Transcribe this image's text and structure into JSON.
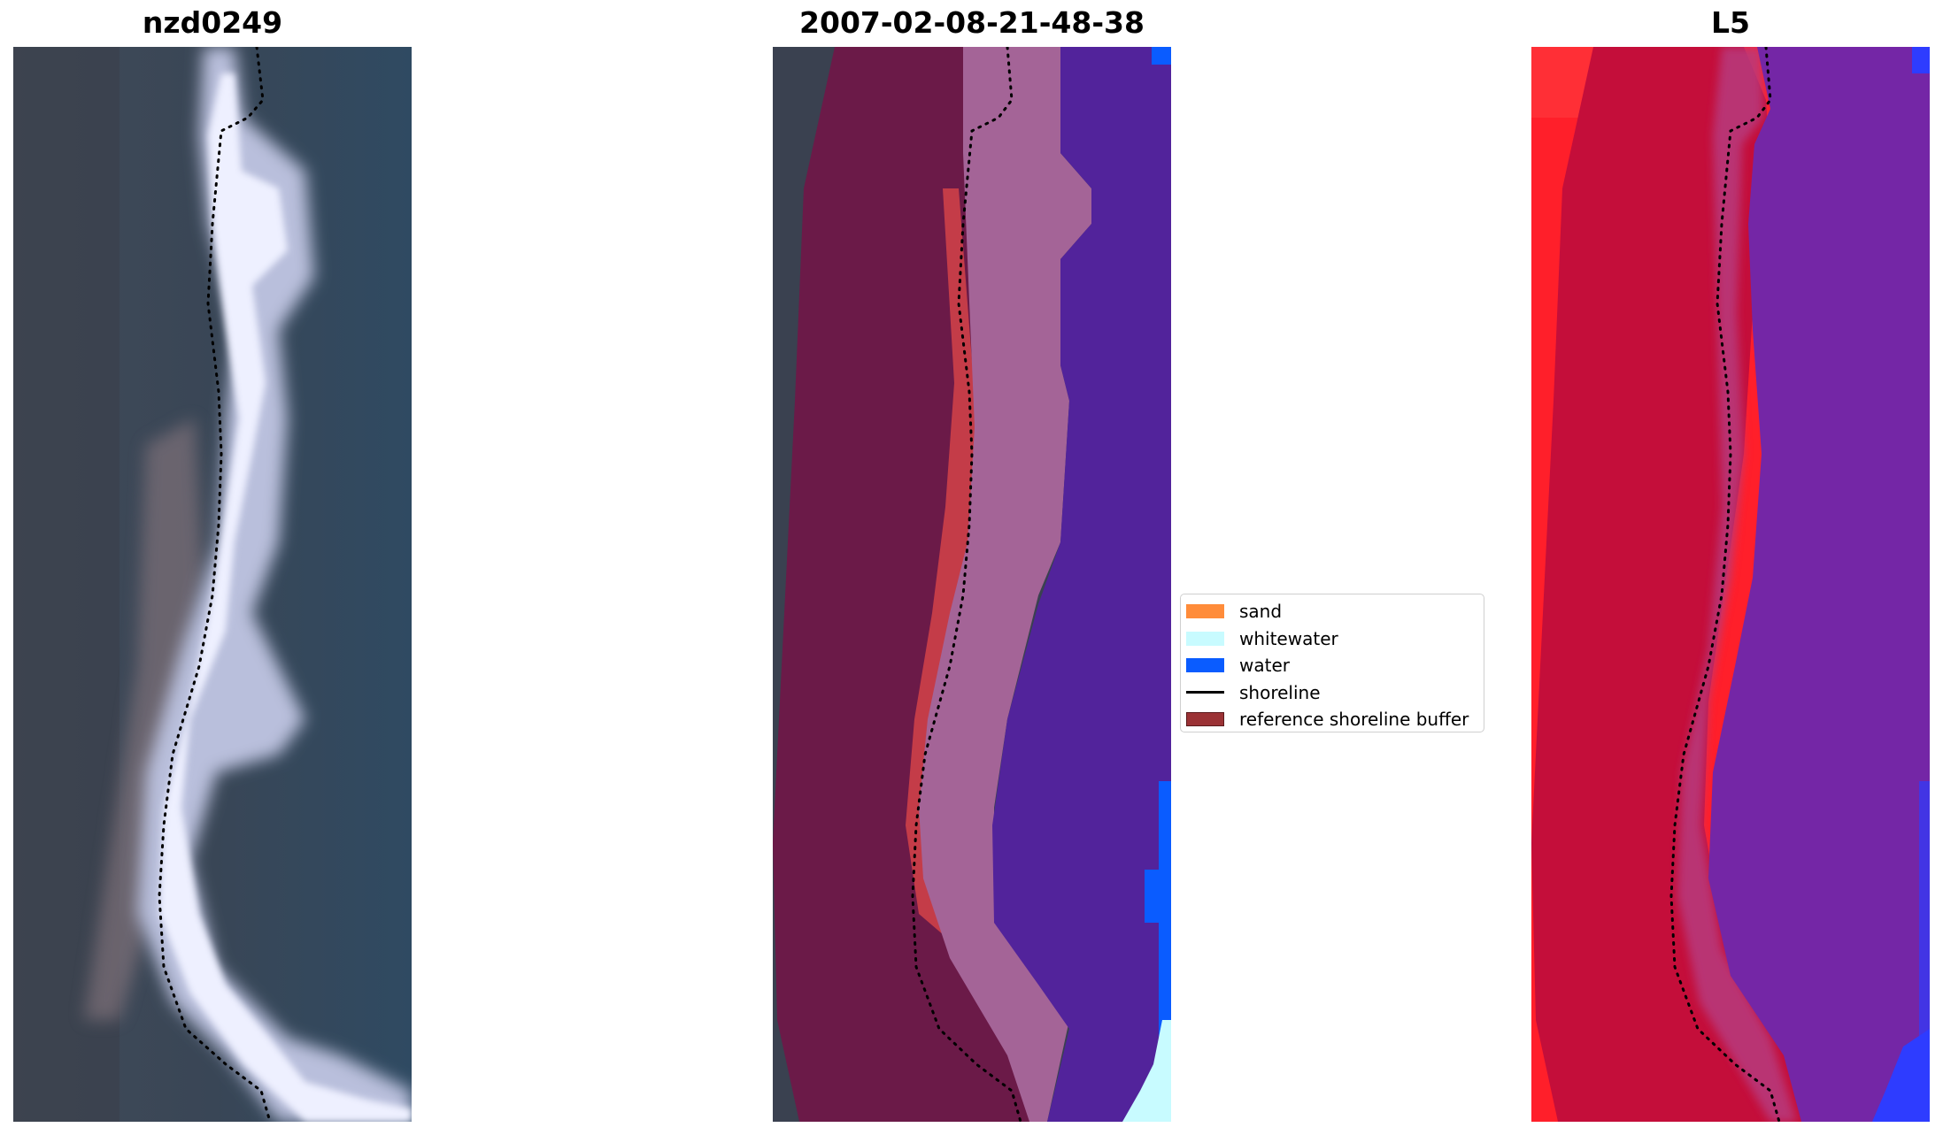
{
  "titles": {
    "left": "nzd0249",
    "center": "2007-02-08-21-48-38",
    "right": "L5"
  },
  "legend": [
    {
      "label": "sand",
      "kind": "patch",
      "color": "#ff8c3a"
    },
    {
      "label": "whitewater",
      "kind": "patch",
      "color": "#c8fbff"
    },
    {
      "label": "water",
      "kind": "patch",
      "color": "#0a5cff"
    },
    {
      "label": "shoreline",
      "kind": "line",
      "color": "#000000"
    },
    {
      "label": "reference shoreline buffer",
      "kind": "patch",
      "color": "#9b3235",
      "edge": "#5a1a1c"
    }
  ],
  "colors": {
    "rgb_sea": "#33475c",
    "rgb_surf": "#d8dcf2",
    "buffer": "#6b1a48",
    "sand": "#c43c48",
    "whitewater_mask": "#a46497",
    "water_mask": "#52239b",
    "water_edge": "#0a5cff",
    "whitewater_edge": "#c8fbff",
    "l5_land": "#ff1f2a",
    "l5_buffer": "#c40e3a",
    "l5_sea": "#7426a6",
    "l5_edge": "#2e3cff"
  }
}
